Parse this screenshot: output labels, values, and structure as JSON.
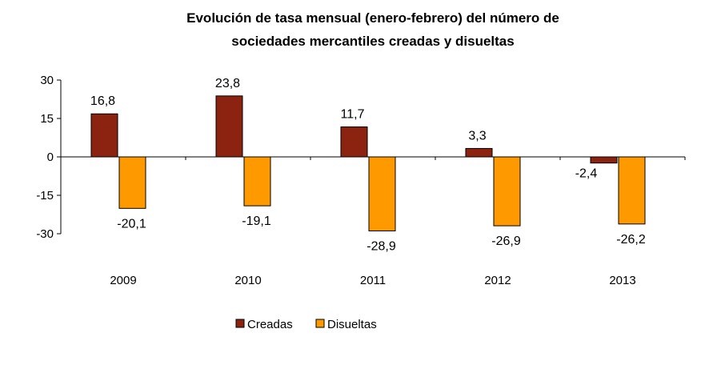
{
  "chart_data": {
    "type": "bar",
    "title_lines": [
      "Evolución de tasa mensual (enero-febrero) del número de",
      "sociedades mercantiles creadas  y disueltas"
    ],
    "categories": [
      "2009",
      "2010",
      "2011",
      "2012",
      "2013"
    ],
    "series": [
      {
        "name": "Creadas",
        "values": [
          16.8,
          23.8,
          11.7,
          3.3,
          -2.4
        ],
        "labels": [
          "16,8",
          "23,8",
          "11,7",
          "3,3",
          "-2,4"
        ],
        "color": "#8B2310"
      },
      {
        "name": "Disueltas",
        "values": [
          -20.1,
          -19.1,
          -28.9,
          -26.9,
          -26.2
        ],
        "labels": [
          "-20,1",
          "-19,1",
          "-28,9",
          "-26,9",
          "-26,2"
        ],
        "color": "#FF9900"
      }
    ],
    "yticks": [
      30,
      15,
      0,
      -15,
      -30
    ],
    "ytick_labels": [
      "30",
      "15",
      "0",
      "-15",
      "-30"
    ],
    "ylim": [
      -30,
      30
    ],
    "legend_position": "bottom",
    "grid": false
  }
}
